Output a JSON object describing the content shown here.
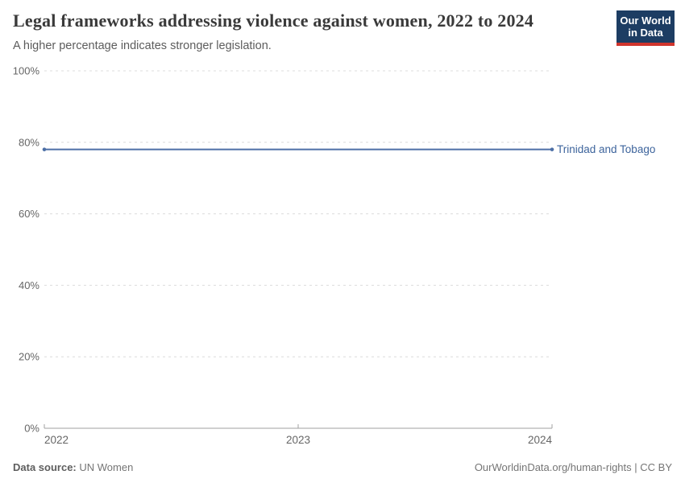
{
  "header": {
    "title": "Legal frameworks addressing violence against women, 2022 to 2024",
    "subtitle": "A higher percentage indicates stronger legislation.",
    "logo": {
      "line1": "Our World",
      "line2": "in Data"
    }
  },
  "footer": {
    "datasource_label": "Data source:",
    "datasource_value": " UN Women",
    "url_text": "OurWorldinData.org/human-rights",
    "separator": " | ",
    "license": "CC BY"
  },
  "colors": {
    "title_text": "#3a3a3a",
    "subtitle_text": "#5c5c5c",
    "logo_bg": "#1d3d63",
    "logo_stripe": "#d0342c",
    "grid": "#dcdcdc",
    "axis": "#a0a0a0",
    "tick_text": "#666666",
    "footer_text": "#757575"
  },
  "chart_data": {
    "type": "line",
    "title": "Legal frameworks addressing violence against women, 2022 to 2024",
    "subtitle": "A higher percentage indicates stronger legislation.",
    "x": [
      2022,
      2023,
      2024
    ],
    "xticks": [
      2022,
      2023,
      2024
    ],
    "ylim": [
      0,
      100
    ],
    "yticks": [
      0,
      20,
      40,
      60,
      80,
      100
    ],
    "ytick_suffix": "%",
    "grid": true,
    "legend": "end-of-line-label",
    "series": [
      {
        "name": "Trinidad and Tobago",
        "values": [
          78,
          78,
          78
        ],
        "color": "#4d6fa6",
        "label_color": "#3d649c"
      }
    ]
  }
}
